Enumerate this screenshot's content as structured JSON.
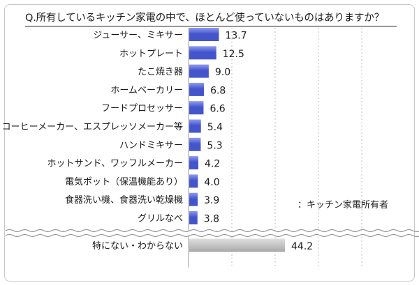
{
  "chart_data": {
    "type": "bar",
    "orientation": "horizontal",
    "title": "Q.所有しているキッチン家電の中で、ほとんど使っていないものはありますか？",
    "annotation": "：キッチン家電所有者",
    "categories": [
      "ジューサー、ミキサー",
      "ホットプレート",
      "たこ焼き器",
      "ホームベーカリー",
      "フードプロセッサー",
      "コーヒーメーカー、エスプレッソメーカー等",
      "ハンドミキサー",
      "ホットサンド、ワッフルメーカー",
      "電気ポット（保温機能あり）",
      "食器洗い機、食器洗い乾燥機",
      "グリルなべ"
    ],
    "values": [
      13.7,
      12.5,
      9.0,
      6.8,
      6.6,
      5.4,
      5.3,
      4.2,
      4.0,
      3.9,
      3.8
    ],
    "value_labels": [
      "13.7",
      "12.5",
      "9.0",
      "6.8",
      "6.6",
      "5.4",
      "5.3",
      "4.2",
      "4.0",
      "3.9",
      "3.8"
    ],
    "other": {
      "label": "特にない・わからない",
      "value": 44.2,
      "value_label": "44.2"
    },
    "xlim": [
      0,
      100
    ],
    "grid": true,
    "colors": {
      "bar_main": "#4455cc",
      "bar_main_light": "#8e9bf0",
      "bar_other": "#a8a8a8",
      "bar_other_light": "#e0e0e0",
      "grid": "#bdbdbd"
    }
  }
}
